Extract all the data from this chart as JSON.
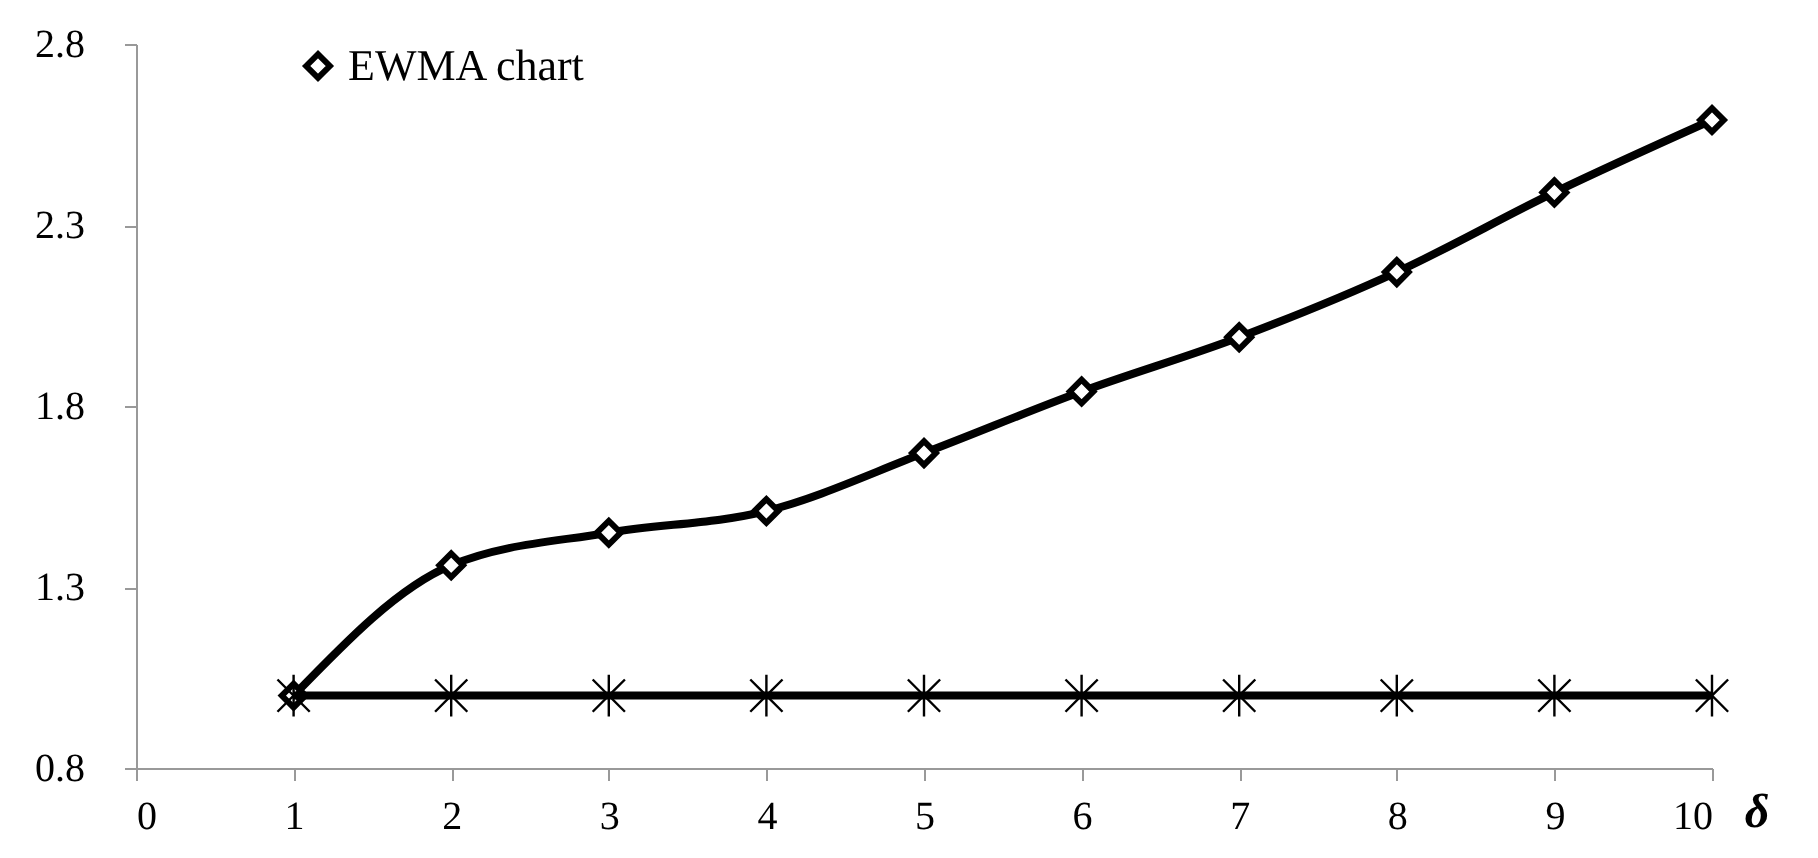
{
  "chart_data": {
    "type": "line",
    "xlabel": "δ",
    "x": [
      1,
      2,
      3,
      4,
      5,
      6,
      7,
      8,
      9,
      10
    ],
    "series": [
      {
        "name": "EWMA chart",
        "color": "#000000",
        "marker": "diamond",
        "values": [
          1.0,
          1.36,
          1.45,
          1.51,
          1.67,
          1.84,
          1.99,
          2.17,
          2.39,
          2.59
        ]
      },
      {
        "color": "#000000",
        "marker": "cross",
        "values": [
          1.0,
          1.0,
          1.0,
          1.0,
          1.0,
          1.0,
          1.0,
          1.0,
          1.0,
          1.0
        ]
      }
    ],
    "xlim": [
      0,
      10
    ],
    "xticks": [
      0,
      1,
      2,
      3,
      4,
      5,
      6,
      7,
      8,
      9,
      10
    ],
    "ylim": [
      0.8,
      2.8
    ],
    "yticks": [
      0.8,
      1.3,
      1.8,
      2.3,
      2.8
    ],
    "grid": false,
    "legend": "top left",
    "line_style": "solid"
  }
}
